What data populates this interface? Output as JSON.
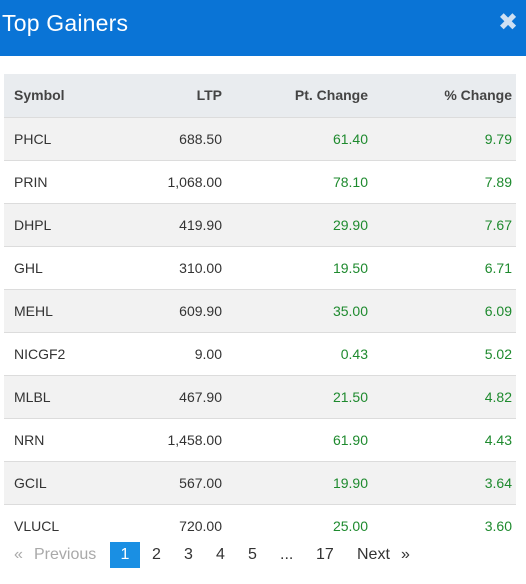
{
  "header": {
    "title": "Top Gainers",
    "close_glyph": "✖"
  },
  "table": {
    "columns": [
      "Symbol",
      "LTP",
      "Pt. Change",
      "% Change"
    ],
    "rows": [
      {
        "symbol": "PHCL",
        "ltp": "688.50",
        "pt_change": "61.40",
        "pct_change": "9.79"
      },
      {
        "symbol": "PRIN",
        "ltp": "1,068.00",
        "pt_change": "78.10",
        "pct_change": "7.89"
      },
      {
        "symbol": "DHPL",
        "ltp": "419.90",
        "pt_change": "29.90",
        "pct_change": "7.67"
      },
      {
        "symbol": "GHL",
        "ltp": "310.00",
        "pt_change": "19.50",
        "pct_change": "6.71"
      },
      {
        "symbol": "MEHL",
        "ltp": "609.90",
        "pt_change": "35.00",
        "pct_change": "6.09"
      },
      {
        "symbol": "NICGF2",
        "ltp": "9.00",
        "pt_change": "0.43",
        "pct_change": "5.02"
      },
      {
        "symbol": "MLBL",
        "ltp": "467.90",
        "pt_change": "21.50",
        "pct_change": "4.82"
      },
      {
        "symbol": "NRN",
        "ltp": "1,458.00",
        "pt_change": "61.90",
        "pct_change": "4.43"
      },
      {
        "symbol": "GCIL",
        "ltp": "567.00",
        "pt_change": "19.90",
        "pct_change": "3.64"
      },
      {
        "symbol": "VLUCL",
        "ltp": "720.00",
        "pt_change": "25.00",
        "pct_change": "3.60"
      }
    ]
  },
  "pagination": {
    "first_glyph": "«",
    "previous_label": "Previous",
    "pages": [
      "1",
      "2",
      "3",
      "4",
      "5"
    ],
    "ellipsis": "...",
    "last_page": "17",
    "next_label": "Next",
    "last_glyph": "»",
    "current_page": "1"
  },
  "colors": {
    "header_bg": "#0a74d6",
    "positive": "#1e8a2e",
    "active_page": "#1a8fe3"
  }
}
